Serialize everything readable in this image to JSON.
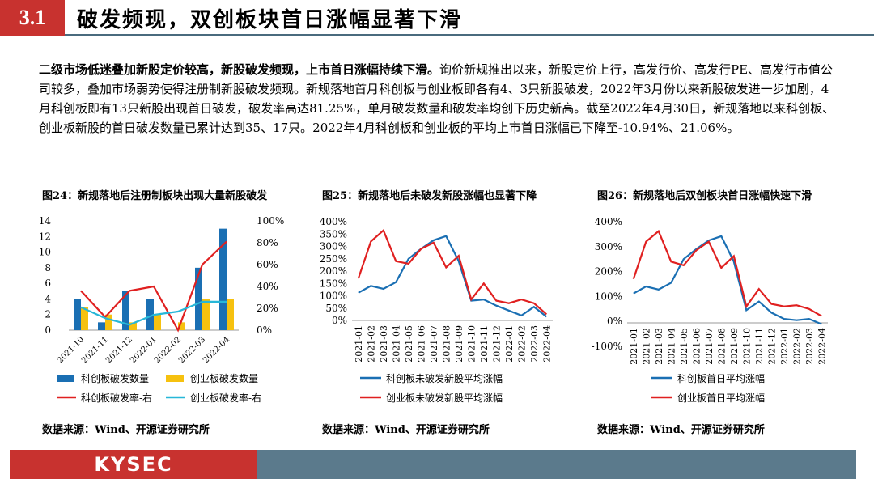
{
  "header": {
    "section_number": "3.1",
    "title": "破发频现，双创板块首日涨幅显著下滑"
  },
  "summary": {
    "lead": "二级市场低迷叠加新股定价较高，新股破发频现，上市首日涨幅持续下滑。",
    "body": "询价新规推出以来，新股定价上行，高发行价、高发行PE、高发行市值公司较多，叠加市场弱势使得注册制新股破发频现。新规落地首月科创板与创业板即各有4、3只新股破发，2022年3月份以来新股破发进一步加剧，4月科创板即有13只新股出现首日破发，破发率高达81.25%，单月破发数量和破发率均创下历史新高。截至2022年4月30日，新规落地以来科创板、创业板新股的首日破发数量已累计达到35、17只。2022年4月科创板和创业板的平均上市首日涨幅已下降至-10.94%、21.06%。"
  },
  "figures": {
    "fig24": {
      "title": "图24：新规落地后注册制板块出现大量新股破发",
      "source": "数据来源：Wind、开源证券研究所"
    },
    "fig25": {
      "title": "图25：新规落地后未破发新股涨幅也显著下降",
      "source": "数据来源：Wind、开源证券研究所"
    },
    "fig26": {
      "title": "图26：新规落地后双创板块首日涨幅快速下滑",
      "source": "数据来源：Wind、开源证券研究所"
    }
  },
  "colors": {
    "blue": "#1a6fb3",
    "yellow": "#f6c10f",
    "red": "#e02020",
    "cyan": "#27b7d8",
    "accent": "#c8322f",
    "slate": "#5b7a8c"
  },
  "chart_data": [
    {
      "type": "bar",
      "categories": [
        "2021-10",
        "2021-11",
        "2021-12",
        "2022-01",
        "2022-02",
        "2022-03",
        "2022-04"
      ],
      "series": [
        {
          "name": "科创板破发数量",
          "kind": "bar",
          "axis": "left",
          "color": "#1a6fb3",
          "values": [
            4,
            1,
            5,
            4,
            0,
            8,
            13
          ]
        },
        {
          "name": "创业板破发数量",
          "kind": "bar",
          "axis": "left",
          "color": "#f6c10f",
          "values": [
            3,
            2,
            1,
            2,
            1,
            4,
            4
          ]
        },
        {
          "name": "科创板破发率-右",
          "kind": "line",
          "axis": "right",
          "color": "#e02020",
          "values": [
            36,
            12,
            36,
            40,
            0,
            60,
            81
          ]
        },
        {
          "name": "创业板破发率-右",
          "kind": "line",
          "axis": "right",
          "color": "#27b7d8",
          "values": [
            21,
            11,
            5,
            14,
            17,
            26,
            26
          ]
        }
      ],
      "y_left": {
        "range": [
          0,
          14
        ],
        "ticks": [
          "0",
          "2",
          "4",
          "6",
          "8",
          "10",
          "12",
          "14"
        ]
      },
      "y_right": {
        "range": [
          0,
          100
        ],
        "ticks": [
          "0%",
          "20%",
          "40%",
          "60%",
          "80%",
          "100%"
        ]
      },
      "legend": [
        "科创板破发数量",
        "创业板破发数量",
        "科创板破发率-右",
        "创业板破发率-右"
      ]
    },
    {
      "type": "line",
      "categories": [
        "2021-01",
        "2021-02",
        "2021-03",
        "2021-04",
        "2021-05",
        "2021-06",
        "2021-07",
        "2021-08",
        "2021-09",
        "2021-10",
        "2021-11",
        "2021-12",
        "2022-01",
        "2022-02",
        "2022-03",
        "2022-04"
      ],
      "series": [
        {
          "name": "科创板未破发新股平均涨幅",
          "color": "#1a6fb3",
          "values": [
            112,
            140,
            128,
            155,
            250,
            290,
            325,
            342,
            240,
            80,
            85,
            60,
            40,
            20,
            55,
            15
          ]
        },
        {
          "name": "创业板未破发新股平均涨幅",
          "color": "#e02020",
          "values": [
            170,
            320,
            365,
            240,
            230,
            290,
            315,
            215,
            262,
            85,
            150,
            80,
            70,
            85,
            70,
            25
          ]
        }
      ],
      "y": {
        "range": [
          0,
          400
        ],
        "ticks": [
          "0%",
          "50%",
          "100%",
          "150%",
          "200%",
          "250%",
          "300%",
          "350%",
          "400%"
        ]
      }
    },
    {
      "type": "line",
      "categories": [
        "2021-01",
        "2021-02",
        "2021-03",
        "2021-04",
        "2021-05",
        "2021-06",
        "2021-07",
        "2021-08",
        "2021-09",
        "2021-10",
        "2021-11",
        "2021-12",
        "2022-01",
        "2022-02",
        "2022-03",
        "2022-04"
      ],
      "series": [
        {
          "name": "科创板首日平均涨幅",
          "color": "#1a6fb3",
          "values": [
            112,
            140,
            128,
            155,
            250,
            290,
            325,
            342,
            240,
            45,
            80,
            35,
            10,
            5,
            10,
            -11
          ]
        },
        {
          "name": "创业板首日平均涨幅",
          "color": "#e02020",
          "values": [
            170,
            320,
            362,
            240,
            225,
            285,
            320,
            215,
            262,
            60,
            130,
            70,
            60,
            65,
            50,
            21
          ]
        }
      ],
      "y": {
        "range": [
          -100,
          400
        ],
        "ticks": [
          "-100%",
          "0%",
          "100%",
          "200%",
          "300%",
          "400%"
        ]
      }
    }
  ]
}
